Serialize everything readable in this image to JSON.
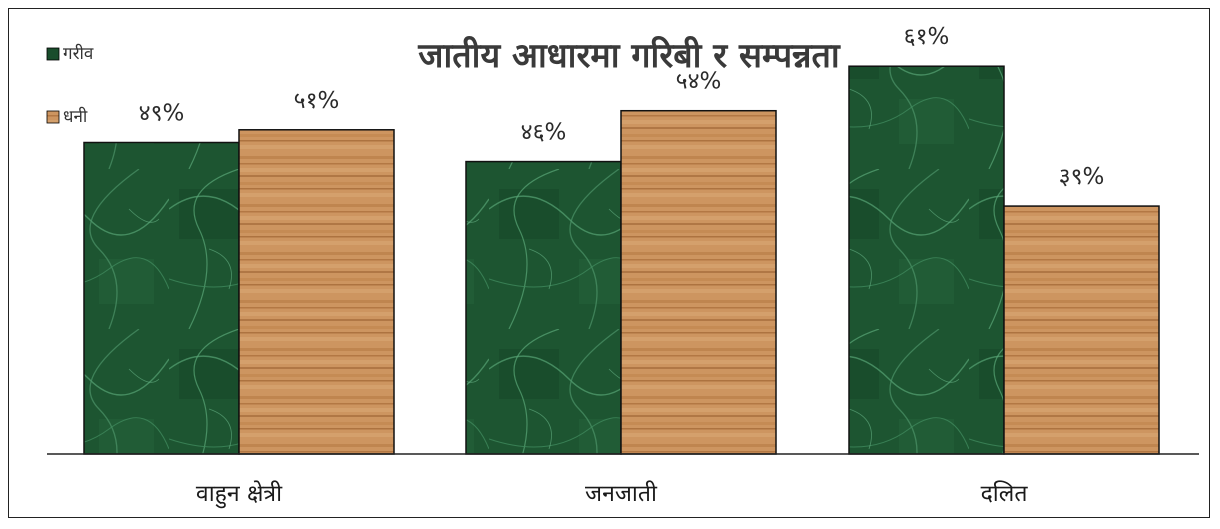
{
  "chart_data": {
    "type": "bar",
    "title": "जातीय आधारमा गरिबी र सम्पन्नता",
    "xlabel": "",
    "ylabel": "",
    "categories": [
      "वाहुन क्षेत्री",
      "जनजाती",
      "दलित"
    ],
    "series": [
      {
        "name": "गरीव",
        "values": [
          49,
          46,
          61
        ],
        "labels": [
          "४९%",
          "४६%",
          "६१%"
        ],
        "color": "#1f5a34"
      },
      {
        "name": "धनी",
        "values": [
          51,
          54,
          39
        ],
        "labels": [
          "५१%",
          "५४%",
          "३९%"
        ],
        "color": "#c88a52"
      }
    ],
    "ylim": [
      0,
      70
    ],
    "grid": false,
    "legend_position": "top-left"
  }
}
